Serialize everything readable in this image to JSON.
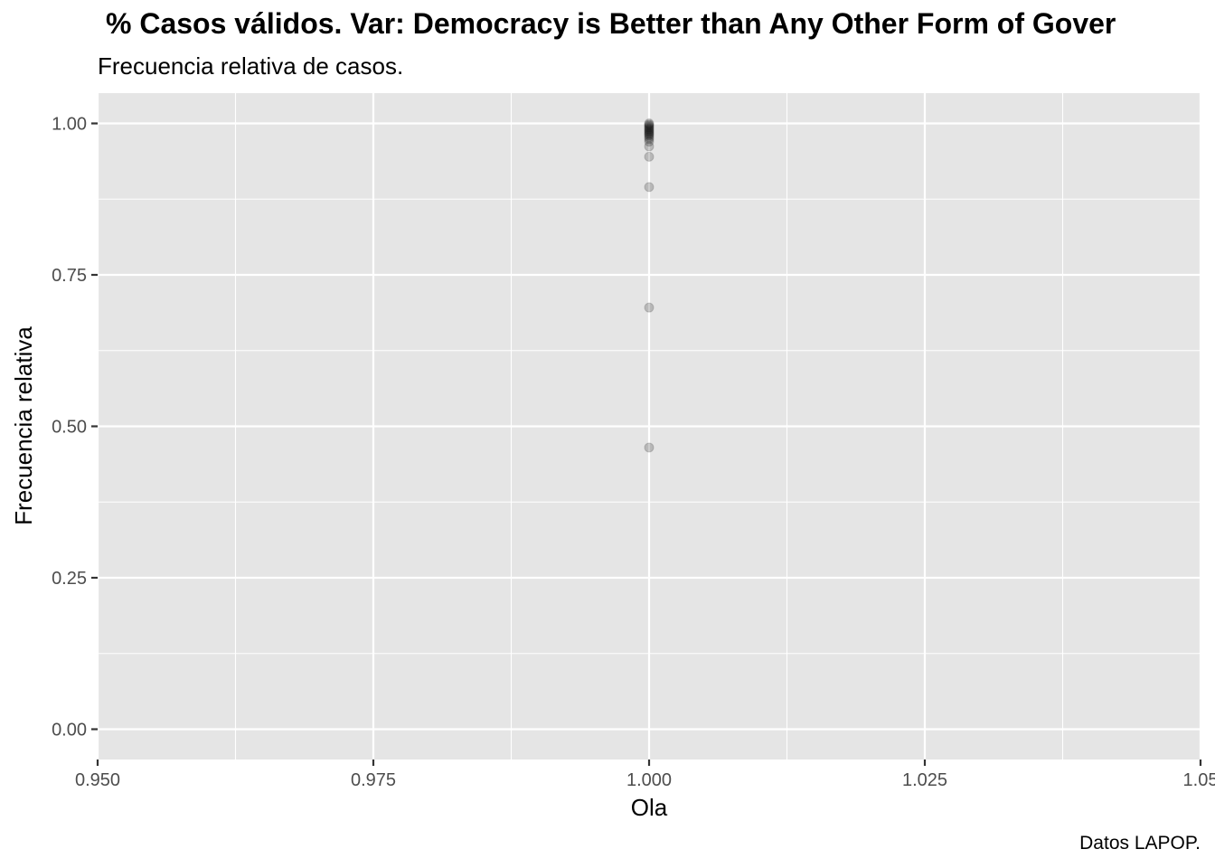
{
  "chart_data": {
    "type": "scatter",
    "title": "% Casos válidos. Var: Democracy is Better than Any Other Form of Gover",
    "subtitle": "Frecuencia relativa de casos.",
    "caption": "Datos LAPOP.",
    "xlabel": "Ola",
    "ylabel": "Frecuencia relativa",
    "xlim": [
      0.95,
      1.05
    ],
    "ylim": [
      0.0,
      1.0
    ],
    "x_ticks": [
      0.95,
      0.975,
      1.0,
      1.025,
      1.05
    ],
    "x_tick_labels": [
      "0.950",
      "0.975",
      "1.000",
      "1.025",
      "1.05"
    ],
    "y_ticks": [
      0.0,
      0.25,
      0.5,
      0.75,
      1.0
    ],
    "y_tick_labels": [
      "0.00",
      "0.25",
      "0.50",
      "0.75",
      "1.00"
    ],
    "grid": true,
    "background_color": "#e5e5e5",
    "grid_color": "#ffffff",
    "point_color": "#000000",
    "point_alpha": 0.2,
    "points": [
      {
        "x": 1.0,
        "y": 1.0
      },
      {
        "x": 1.0,
        "y": 0.998
      },
      {
        "x": 1.0,
        "y": 0.996
      },
      {
        "x": 1.0,
        "y": 0.994
      },
      {
        "x": 1.0,
        "y": 0.992
      },
      {
        "x": 1.0,
        "y": 0.99
      },
      {
        "x": 1.0,
        "y": 0.988
      },
      {
        "x": 1.0,
        "y": 0.986
      },
      {
        "x": 1.0,
        "y": 0.984
      },
      {
        "x": 1.0,
        "y": 0.982
      },
      {
        "x": 1.0,
        "y": 0.98
      },
      {
        "x": 1.0,
        "y": 0.977
      },
      {
        "x": 1.0,
        "y": 0.974
      },
      {
        "x": 1.0,
        "y": 0.97
      },
      {
        "x": 1.0,
        "y": 0.962
      },
      {
        "x": 1.0,
        "y": 0.945
      },
      {
        "x": 1.0,
        "y": 0.895
      },
      {
        "x": 1.0,
        "y": 0.696
      },
      {
        "x": 1.0,
        "y": 0.465
      }
    ]
  }
}
